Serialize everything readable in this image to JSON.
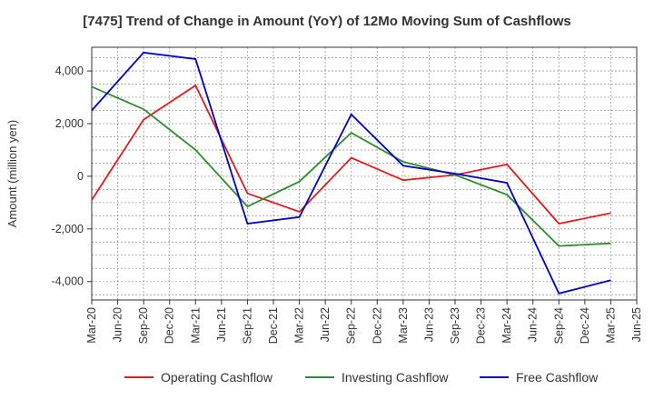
{
  "chart_data": {
    "type": "line",
    "title": "[7475]  Trend of Change in Amount (YoY) of 12Mo Moving Sum of Cashflows",
    "ylabel": "Amount (million yen)",
    "xlabel": "",
    "categories": [
      "Mar-20",
      "Jun-20",
      "Sep-20",
      "Dec-20",
      "Mar-21",
      "Jun-21",
      "Sep-21",
      "Dec-21",
      "Mar-22",
      "Jun-22",
      "Sep-22",
      "Dec-22",
      "Mar-23",
      "Jun-23",
      "Sep-23",
      "Dec-23",
      "Mar-24",
      "Jun-24",
      "Sep-24",
      "Dec-24",
      "Mar-25",
      "Jun-25"
    ],
    "ylim": [
      -4700,
      4900
    ],
    "yticks": [
      -4000,
      -2000,
      0,
      2000,
      4000
    ],
    "ytick_labels": [
      "-4,000",
      "-2,000",
      "0",
      "2,000",
      "4,000"
    ],
    "grid": true,
    "legend_position": "bottom",
    "series": [
      {
        "name": "Operating Cashflow",
        "color": "#e41a1c",
        "values": [
          -900,
          null,
          2150,
          null,
          3450,
          null,
          -650,
          null,
          -1350,
          null,
          700,
          null,
          -150,
          null,
          50,
          null,
          450,
          null,
          -1800,
          null,
          -1400,
          null
        ]
      },
      {
        "name": "Investing Cashflow",
        "color": "#2e8b2e",
        "values": [
          3400,
          null,
          2550,
          null,
          1000,
          null,
          -1150,
          null,
          -200,
          null,
          1650,
          null,
          550,
          null,
          50,
          null,
          -700,
          null,
          -2650,
          null,
          -2550,
          null
        ]
      },
      {
        "name": "Free Cashflow",
        "color": "#0000cc",
        "values": [
          2500,
          null,
          4700,
          null,
          4450,
          null,
          -1800,
          null,
          -1550,
          null,
          2350,
          null,
          400,
          null,
          100,
          null,
          -250,
          null,
          -4450,
          null,
          -3950,
          null
        ]
      }
    ]
  }
}
